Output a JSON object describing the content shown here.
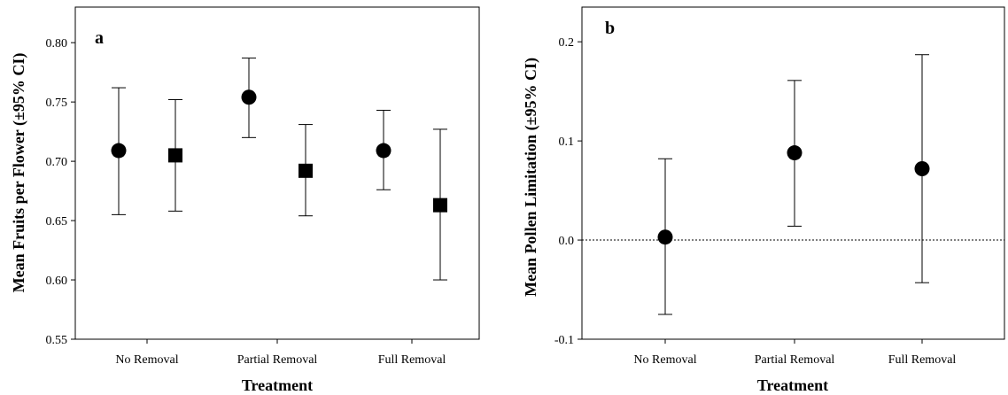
{
  "chart_data": [
    {
      "type": "scatter",
      "panel_label": "a",
      "xlabel": "Treatment",
      "ylabel": "Mean Fruits per Flower (±95% CI)",
      "categories": [
        "No Removal",
        "Partial Removal",
        "Full Removal"
      ],
      "ylim": [
        0.55,
        0.83
      ],
      "yticks": [
        "0.55",
        "0.60",
        "0.65",
        "0.70",
        "0.75",
        "0.80"
      ],
      "yticks_values": [
        0.55,
        0.6,
        0.65,
        0.7,
        0.75,
        0.8
      ],
      "grid": false,
      "error_bars": "95% CI",
      "series": [
        {
          "marker": "circle",
          "values": [
            0.709,
            0.754,
            0.709
          ],
          "ci_low": [
            0.655,
            0.72,
            0.676
          ],
          "ci_high": [
            0.762,
            0.787,
            0.743
          ]
        },
        {
          "marker": "square",
          "values": [
            0.705,
            0.692,
            0.663
          ],
          "ci_low": [
            0.658,
            0.654,
            0.6
          ],
          "ci_high": [
            0.752,
            0.731,
            0.727
          ]
        }
      ]
    },
    {
      "type": "scatter",
      "panel_label": "b",
      "xlabel": "Treatment",
      "ylabel": "Mean Pollen Limitation (±95% CI)",
      "categories": [
        "No Removal",
        "Partial Removal",
        "Full Removal"
      ],
      "ylim": [
        -0.1,
        0.235
      ],
      "yticks": [
        "-0.1",
        "0.0",
        "0.1",
        "0.2"
      ],
      "yticks_values": [
        -0.1,
        0.0,
        0.1,
        0.2
      ],
      "grid": false,
      "reference_line": 0.0,
      "error_bars": "95% CI",
      "series": [
        {
          "marker": "circle",
          "values": [
            0.003,
            0.088,
            0.072
          ],
          "ci_low": [
            -0.075,
            0.014,
            -0.043
          ],
          "ci_high": [
            0.082,
            0.161,
            0.187
          ]
        }
      ]
    }
  ]
}
